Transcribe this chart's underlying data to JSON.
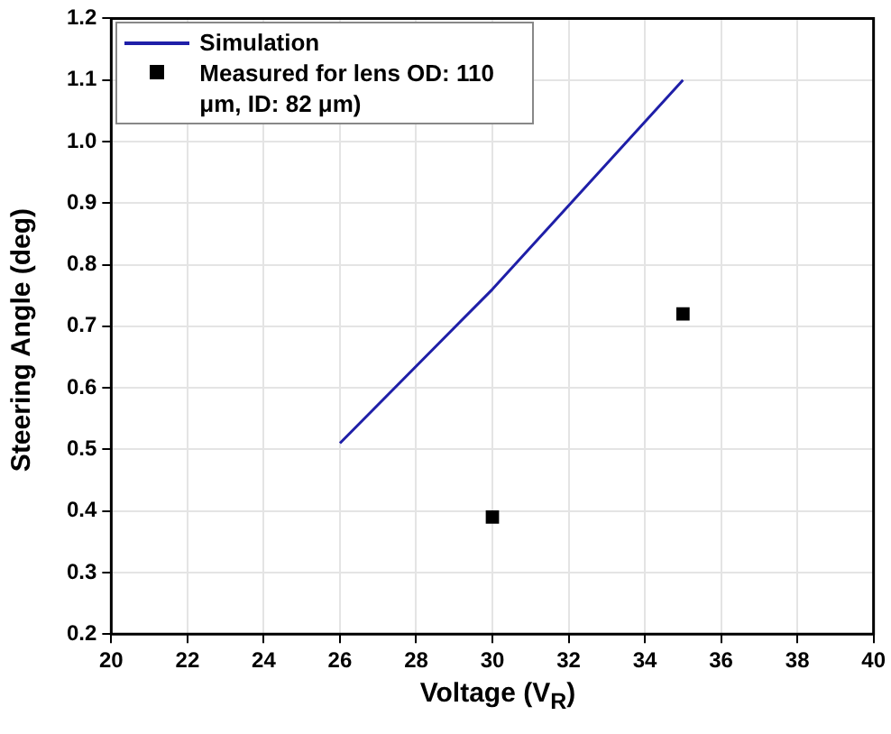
{
  "chart_data": {
    "type": "line",
    "xlabel": "Voltage (V$_{R}$)",
    "ylabel": "Steering Angle (deg)",
    "xlim": [
      20,
      40
    ],
    "xticks": [
      20,
      22,
      24,
      26,
      28,
      30,
      32,
      34,
      36,
      38,
      40
    ],
    "ylim": [
      0.2,
      1.2
    ],
    "yticks": [
      0.2,
      0.3,
      0.4,
      0.5,
      0.6,
      0.7,
      0.8,
      0.9,
      {
        "value": 1,
        "label": "1.0"
      },
      1.1,
      1.2
    ],
    "grid": true,
    "legend": "top left",
    "series": [
      {
        "name": "Simulation",
        "color": "#1f1fa8",
        "x": [
          26,
          30,
          35
        ],
        "values": [
          0.51,
          0.76,
          1.1
        ],
        "marker": "none",
        "line_style": "solid"
      },
      {
        "name": "Measured for lens OD: 110 μm, ID: 82 μm)",
        "type": "scatter",
        "color": "#000000",
        "x": [
          30,
          35
        ],
        "values": [
          0.39,
          0.72
        ],
        "marker": "square"
      }
    ]
  }
}
